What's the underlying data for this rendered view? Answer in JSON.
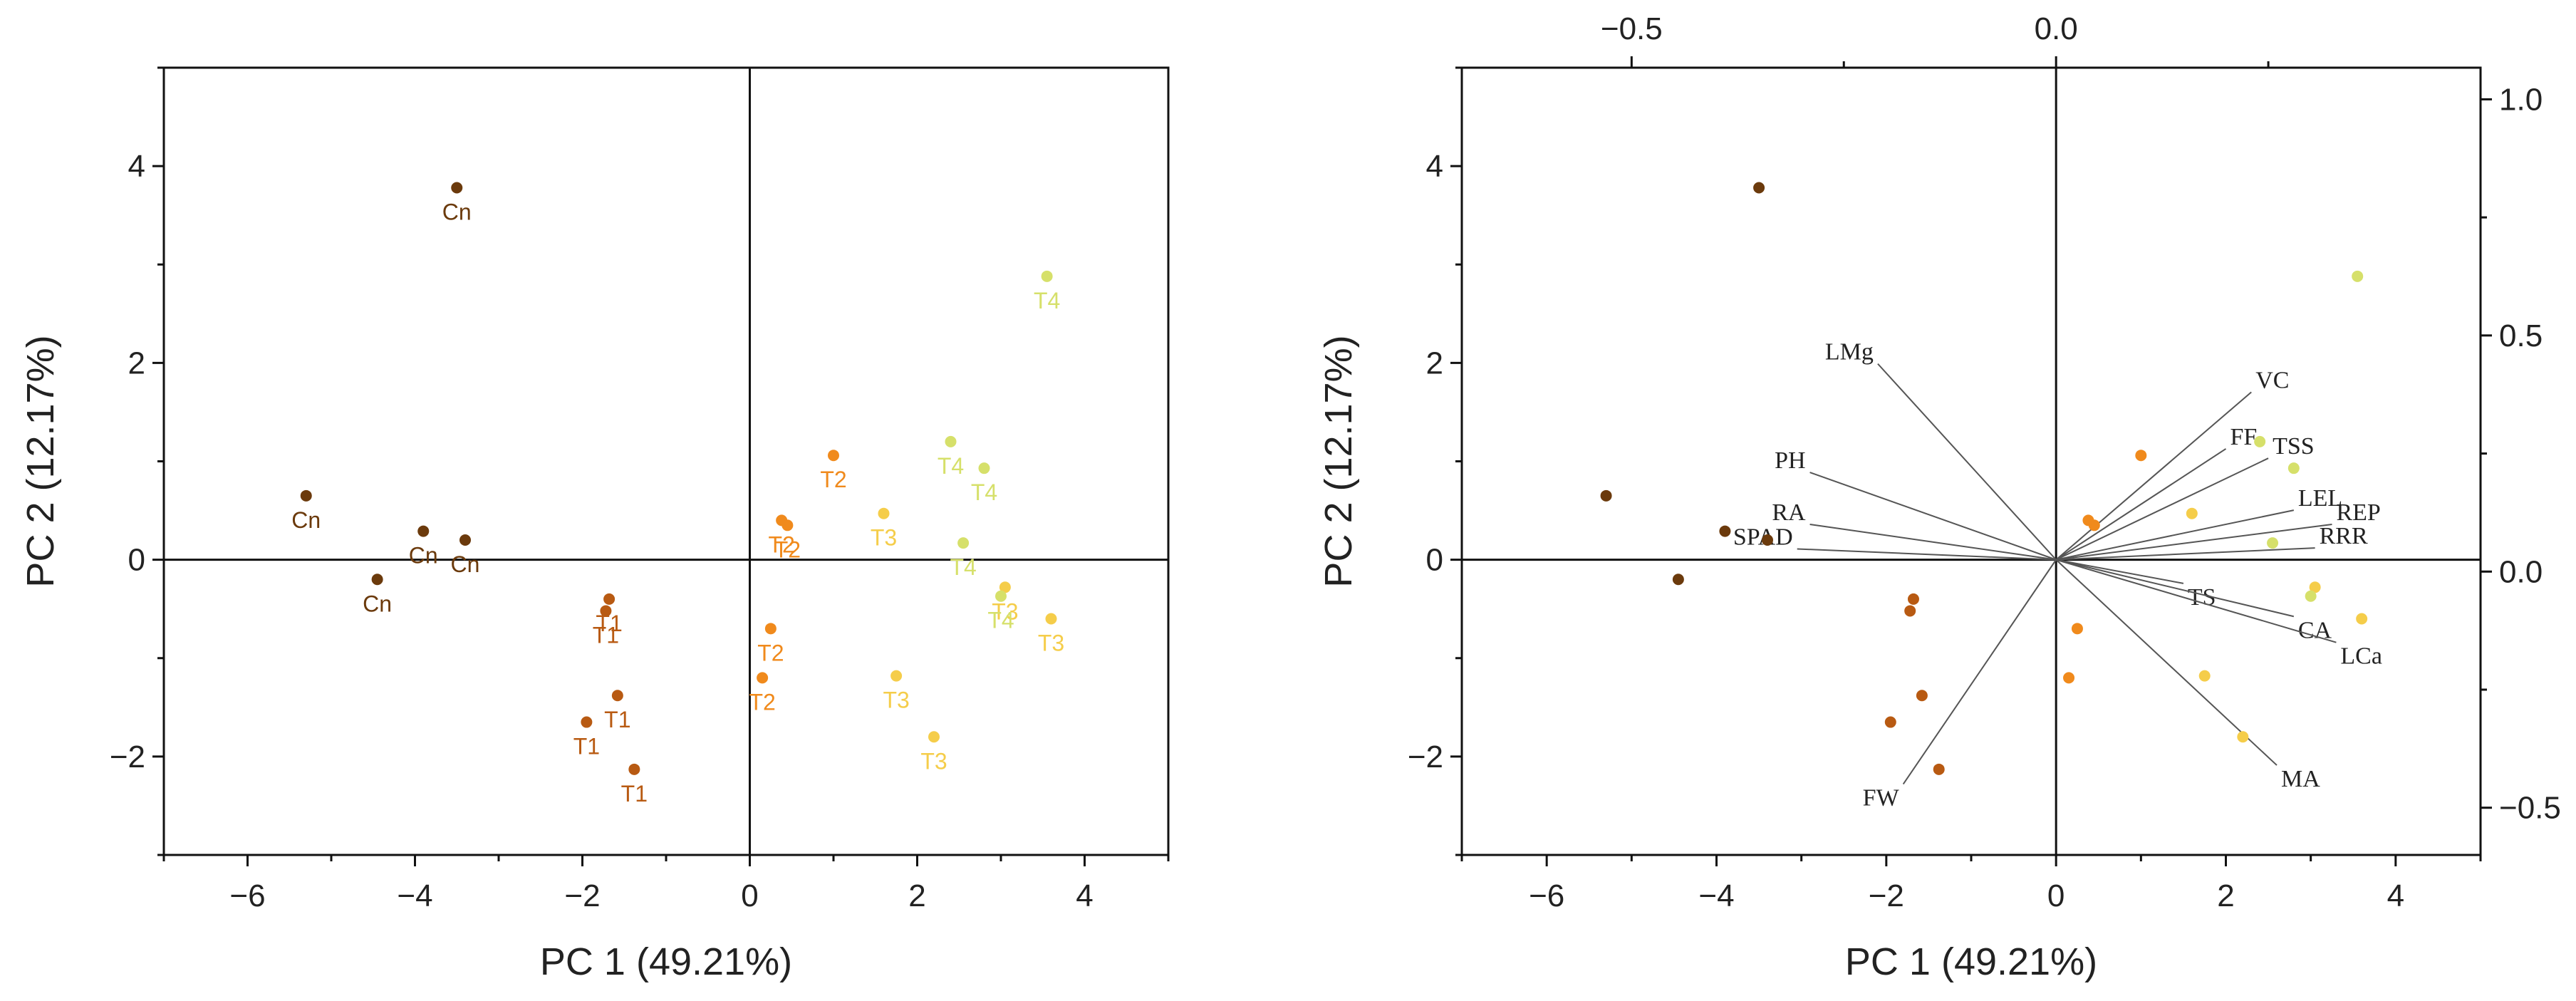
{
  "colors": {
    "Cn": "#6b3a0c",
    "T1": "#b85a12",
    "T2": "#f08a1c",
    "T3": "#f5cd4a",
    "T4": "#d6e06a",
    "axis": "#111111",
    "vector": "#555555"
  },
  "chart_data": [
    {
      "type": "scatter",
      "title": "",
      "xlabel": "PC 1 (49.21%)",
      "ylabel": "PC 2 (12.17%)",
      "xlim": [
        -7,
        5
      ],
      "ylim": [
        -3,
        5
      ],
      "xticks": [
        "−6",
        "−4",
        "−2",
        "0",
        "2",
        "4"
      ],
      "yticks": [
        "−2",
        "0",
        "2",
        "4"
      ],
      "grid": false,
      "series": [
        {
          "name": "Cn",
          "points": [
            {
              "x": -3.5,
              "y": 3.78,
              "label": "Cn"
            },
            {
              "x": -5.3,
              "y": 0.65,
              "label": "Cn"
            },
            {
              "x": -3.9,
              "y": 0.29,
              "label": "Cn"
            },
            {
              "x": -3.4,
              "y": 0.2,
              "label": "Cn"
            },
            {
              "x": -4.45,
              "y": -0.2,
              "label": "Cn"
            }
          ]
        },
        {
          "name": "T1",
          "points": [
            {
              "x": -1.68,
              "y": -0.4,
              "label": "T1"
            },
            {
              "x": -1.72,
              "y": -0.52,
              "label": "T1"
            },
            {
              "x": -1.58,
              "y": -1.38,
              "label": "T1"
            },
            {
              "x": -1.95,
              "y": -1.65,
              "label": "T1"
            },
            {
              "x": -1.38,
              "y": -2.13,
              "label": "T1"
            }
          ]
        },
        {
          "name": "T2",
          "points": [
            {
              "x": 1.0,
              "y": 1.06,
              "label": "T2"
            },
            {
              "x": 0.38,
              "y": 0.4,
              "label": "T2"
            },
            {
              "x": 0.45,
              "y": 0.35,
              "label": "T2"
            },
            {
              "x": 0.25,
              "y": -0.7,
              "label": "T2"
            },
            {
              "x": 0.15,
              "y": -1.2,
              "label": "T2"
            }
          ]
        },
        {
          "name": "T3",
          "points": [
            {
              "x": 1.6,
              "y": 0.47,
              "label": "T3"
            },
            {
              "x": 3.05,
              "y": -0.28,
              "label": "T3"
            },
            {
              "x": 3.6,
              "y": -0.6,
              "label": "T3"
            },
            {
              "x": 1.75,
              "y": -1.18,
              "label": "T3"
            },
            {
              "x": 2.2,
              "y": -1.8,
              "label": "T3"
            }
          ]
        },
        {
          "name": "T4",
          "points": [
            {
              "x": 3.55,
              "y": 2.88,
              "label": "T4"
            },
            {
              "x": 2.4,
              "y": 1.2,
              "label": "T4"
            },
            {
              "x": 2.8,
              "y": 0.93,
              "label": "T4"
            },
            {
              "x": 2.55,
              "y": 0.17,
              "label": "T4"
            },
            {
              "x": 3.0,
              "y": -0.37,
              "label": "T4"
            }
          ]
        }
      ]
    },
    {
      "type": "biplot",
      "title": "",
      "xlabel": "PC 1 (49.21%)",
      "ylabel": "PC 2 (12.17%)",
      "xlim": [
        -7,
        5
      ],
      "ylim": [
        -3,
        5
      ],
      "xticks": [
        "−6",
        "−4",
        "−2",
        "0",
        "2",
        "4"
      ],
      "yticks": [
        "−2",
        "0",
        "2",
        "4"
      ],
      "loading_xlim": [
        -0.7,
        0.5
      ],
      "loading_ylim": [
        -0.6,
        1.067
      ],
      "top_ticks": [
        "−0.5",
        "0.0"
      ],
      "right_ticks": [
        "−0.5",
        "0.0",
        "0.5",
        "1.0"
      ],
      "grid": false,
      "loadings": [
        {
          "label": "LMg",
          "x": -0.21,
          "y": 0.44
        },
        {
          "label": "PH",
          "x": -0.29,
          "y": 0.21
        },
        {
          "label": "RA",
          "x": -0.29,
          "y": 0.1
        },
        {
          "label": "SPAD",
          "x": -0.305,
          "y": 0.048
        },
        {
          "label": "FW",
          "x": -0.18,
          "y": -0.45
        },
        {
          "label": "VC",
          "x": 0.23,
          "y": 0.38
        },
        {
          "label": "FF",
          "x": 0.2,
          "y": 0.26
        },
        {
          "label": "TSS",
          "x": 0.25,
          "y": 0.24
        },
        {
          "label": "LEL",
          "x": 0.28,
          "y": 0.13
        },
        {
          "label": "REP",
          "x": 0.325,
          "y": 0.1
        },
        {
          "label": "RRR",
          "x": 0.305,
          "y": 0.05
        },
        {
          "label": "TS",
          "x": 0.15,
          "y": -0.025
        },
        {
          "label": "CA",
          "x": 0.28,
          "y": -0.095
        },
        {
          "label": "LCa",
          "x": 0.33,
          "y": -0.15
        },
        {
          "label": "MA",
          "x": 0.26,
          "y": -0.41
        }
      ]
    }
  ]
}
